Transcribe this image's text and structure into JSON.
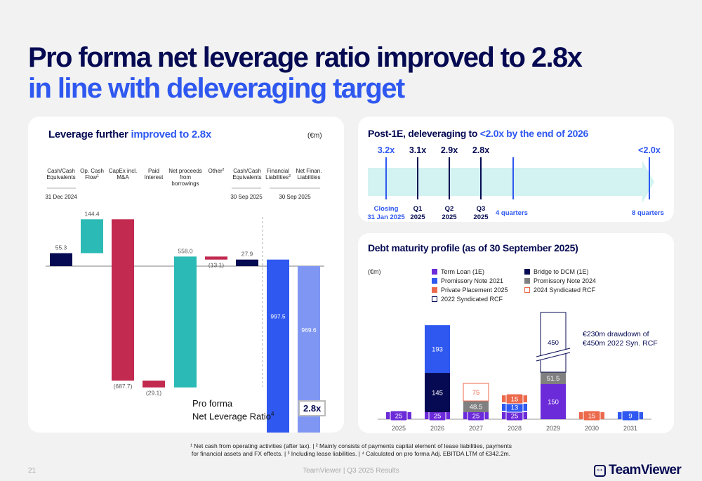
{
  "header": {
    "title_line1": "Pro forma net leverage ratio improved to 2.8x",
    "title_line2": "in line with deleveraging target"
  },
  "left_panel": {
    "title_dark": "Leverage further ",
    "title_highlight": "improved to 2.8x",
    "unit": "(€m)",
    "pro_forma_label_line1": "Pro forma",
    "pro_forma_label_line2": "Net Leverage Ratio",
    "pro_forma_sup": "4",
    "pro_forma_value": "2.8x"
  },
  "top_right_panel": {
    "title_dark": "Post-1E, deleveraging to ",
    "title_highlight": "<2.0x by the end of 2026",
    "milestones": [
      {
        "value": "3.2x",
        "label_line1": "Closing",
        "label_line2": "31 Jan 2025",
        "highlight": true
      },
      {
        "value": "3.1x",
        "label_line1": "Q1",
        "label_line2": "2025",
        "highlight": false
      },
      {
        "value": "2.9x",
        "label_line1": "Q2",
        "label_line2": "2025",
        "highlight": false
      },
      {
        "value": "2.8x",
        "label_line1": "Q3",
        "label_line2": "2025",
        "highlight": false
      },
      {
        "value": "",
        "label_line1": "4 quarters",
        "label_line2": "",
        "highlight": true
      },
      {
        "value": "<2.0x",
        "label_line1": "8 quarters",
        "label_line2": "",
        "highlight": true
      }
    ]
  },
  "bottom_right_panel": {
    "title": "Debt maturity profile (as of 30 September 2025)",
    "unit": "(€m)",
    "annotation_line1": "€230m drawdown of",
    "annotation_line2": "€450m 2022 Syn. RCF"
  },
  "chart_data": [
    {
      "type": "bar",
      "subtype": "waterfall",
      "title": "Leverage further improved to 2.8x",
      "unit": "€m",
      "categories": [
        {
          "label": "Cash/Cash Equivalents",
          "sup": "",
          "date_group": "31 Dec 2024"
        },
        {
          "label": "Op. Cash Flow",
          "sup": "1",
          "date_group": ""
        },
        {
          "label": "CapEx incl. M&A",
          "sup": "",
          "date_group": ""
        },
        {
          "label": "Paid Interest",
          "sup": "",
          "date_group": ""
        },
        {
          "label": "Net proceeds from borrowings",
          "sup": "",
          "date_group": ""
        },
        {
          "label": "Other",
          "sup": "2",
          "date_group": ""
        },
        {
          "label": "Cash/Cash Equivalents",
          "sup": "",
          "date_group": "30 Sep 2025"
        },
        {
          "label": "Financial Liabilities",
          "sup": "3",
          "date_group": "30 Sep 2025"
        },
        {
          "label": "Net Finan. Liabilities",
          "sup": "",
          "date_group": "30 Sep 2025"
        }
      ],
      "values": [
        55.3,
        144.4,
        -687.7,
        -29.1,
        558.0,
        -13.1,
        27.9,
        -997.5,
        -969.6
      ],
      "value_labels": [
        "55.3",
        "144.4",
        "(687.7)",
        "(29.1)",
        "558.0",
        "(13.1)",
        "27.9",
        "997.5",
        "969.6"
      ],
      "bar_kind": [
        "total",
        "delta",
        "delta",
        "delta",
        "delta",
        "delta",
        "total",
        "total",
        "total"
      ],
      "colors": [
        "#050a52",
        "#2bbab5",
        "#c22a50",
        "#c22a50",
        "#2bbab5",
        "#c22a50",
        "#050a52",
        "#2f58f0",
        "#7f97f3"
      ]
    },
    {
      "type": "bar",
      "subtype": "stacked",
      "title": "Debt maturity profile (as of 30 September 2025)",
      "unit": "€m",
      "categories": [
        "2025",
        "2026",
        "2027",
        "2028",
        "2029",
        "2030",
        "2031"
      ],
      "series": [
        {
          "name": "Term Loan (1E)",
          "color": "#6c2bd9",
          "values": [
            25,
            25,
            25,
            25,
            150,
            0,
            0
          ]
        },
        {
          "name": "Bridge to DCM (1E)",
          "color": "#050a52",
          "values": [
            0,
            145,
            0,
            0,
            0,
            0,
            0
          ]
        },
        {
          "name": "Promissory Note 2021",
          "color": "#2f58f0",
          "values": [
            0,
            193,
            0,
            13,
            0,
            0,
            9
          ]
        },
        {
          "name": "Promissory Note 2024",
          "color": "#808080",
          "values": [
            0,
            0,
            48.5,
            0,
            51.5,
            0,
            0
          ]
        },
        {
          "name": "Private Placement 2025",
          "color": "#ec6a4c",
          "values": [
            0,
            0,
            0,
            15,
            0,
            15,
            0
          ]
        },
        {
          "name": "2024 Syndicated RCF",
          "color": "#ec6a4c",
          "outline": true,
          "values": [
            0,
            0,
            75,
            0,
            0,
            0,
            0
          ]
        },
        {
          "name": "2022 Syndicated RCF",
          "color": "#050a52",
          "outline": true,
          "values": [
            0,
            0,
            0,
            0,
            450,
            0,
            0
          ]
        }
      ],
      "legend": [
        {
          "name": "Term Loan (1E)",
          "color": "#6c2bd9",
          "outline": false
        },
        {
          "name": "Bridge to DCM (1E)",
          "color": "#050a52",
          "outline": false
        },
        {
          "name": "Promissory Note 2021",
          "color": "#2f58f0",
          "outline": false
        },
        {
          "name": "Promissory Note 2024",
          "color": "#808080",
          "outline": false
        },
        {
          "name": "Private Placement 2025",
          "color": "#ec6a4c",
          "outline": false
        },
        {
          "name": "2024 Syndicated RCF",
          "color": "#ec6a4c",
          "outline": true
        },
        {
          "name": "2022 Syndicated RCF",
          "color": "#050a52",
          "outline": true
        }
      ],
      "legend_placement": "top",
      "axis_break": "2029 bar (450)"
    }
  ],
  "footer": {
    "footnote_line1": "¹ Net cash from operating activities (after tax). | ² Mainly consists of payments capital element of lease liabilities, payments",
    "footnote_line2": "for financial assets and FX effects. | ³ Including lease liabilities. | ⁴ Calculated on pro forma Adj. EBITDA LTM of €342.2m.",
    "page_number": "21",
    "center_text": "TeamViewer | Q3 2025 Results",
    "logo_text": "TeamViewer"
  }
}
